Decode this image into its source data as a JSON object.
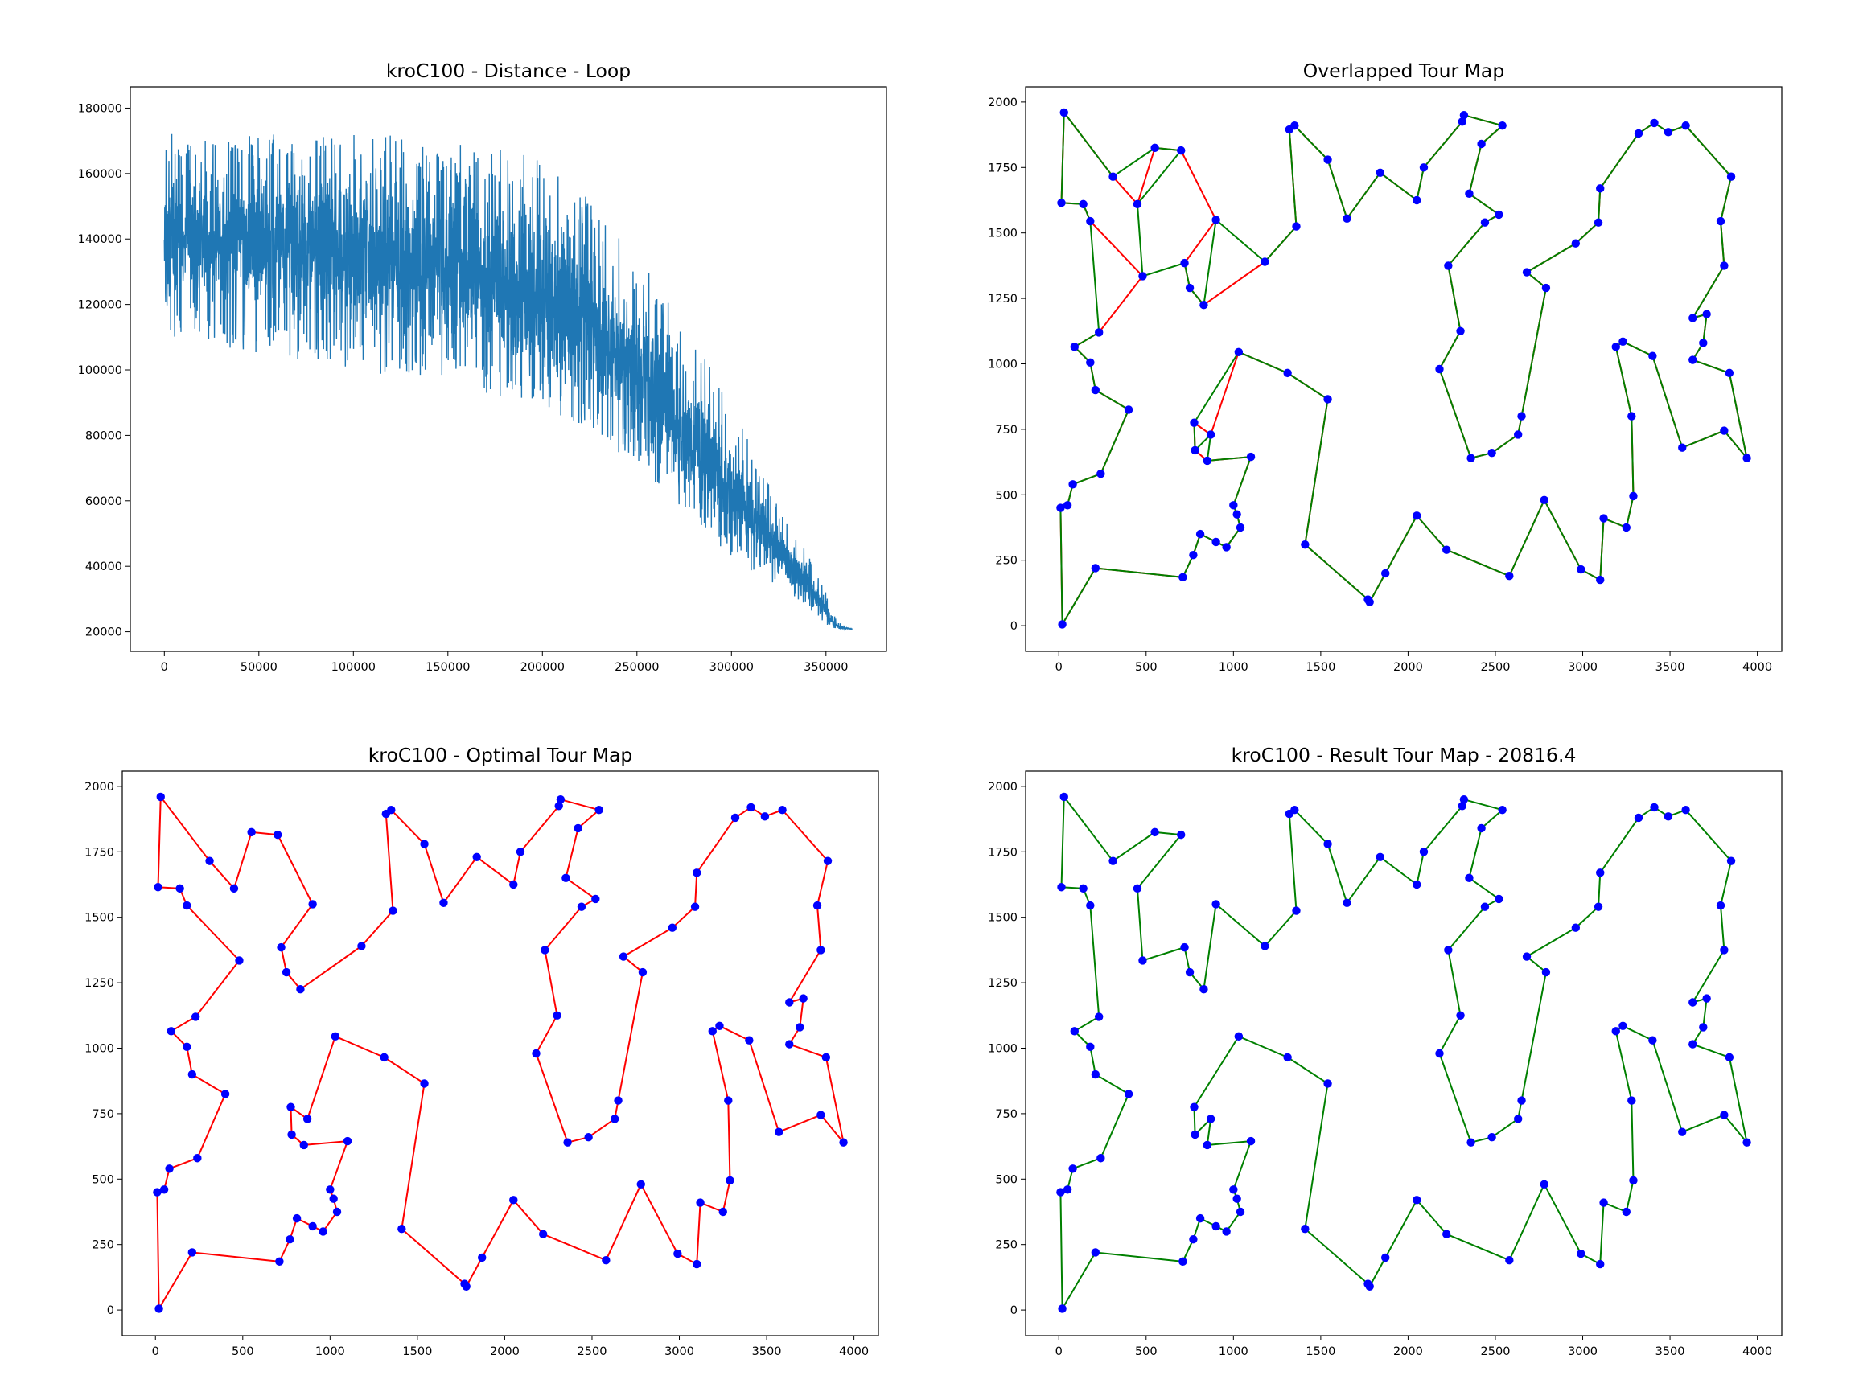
{
  "chart_data": [
    {
      "type": "line",
      "title": "kroC100 - Distance - Loop",
      "xlim": [
        -18000,
        382000
      ],
      "ylim": [
        14000,
        186500
      ],
      "x_ticks": [
        0,
        50000,
        100000,
        150000,
        200000,
        250000,
        300000,
        350000
      ],
      "x_tick_labels": [
        "0",
        "50000",
        "100000",
        "150000",
        "200000",
        "250000",
        "300000",
        "350000"
      ],
      "y_ticks": [
        20000,
        40000,
        60000,
        80000,
        100000,
        120000,
        140000,
        160000,
        180000
      ],
      "y_tick_labels": [
        "20000",
        "40000",
        "60000",
        "80000",
        "100000",
        "120000",
        "140000",
        "160000",
        "180000"
      ],
      "series": [
        {
          "color": "#1f77b4",
          "x_end": 364000,
          "envelope": {
            "x": [
              0,
              2000,
              20000,
              50000,
              100000,
              150000,
              200000,
              230000,
              250000,
              280000,
              300000,
              320000,
              340000,
              350000,
              356000,
              364000
            ],
            "min": [
              125000,
              110000,
              108000,
              105000,
              100000,
              95000,
              88000,
              80000,
              70000,
              55000,
              42000,
              35000,
              27000,
              22000,
              20816,
              20816
            ],
            "max": [
              172000,
              174000,
              170000,
              172000,
              173000,
              170000,
              165000,
              150000,
              135000,
              110000,
              90000,
              65000,
              45000,
              32000,
              23000,
              20816
            ],
            "center": [
              138000,
              140000,
              140000,
              139000,
              137000,
              132000,
              122000,
              112000,
              100000,
              80000,
              63000,
              48000,
              35000,
              26000,
              21500,
              20816
            ]
          }
        }
      ]
    },
    {
      "type": "scatter",
      "title": "Overlapped Tour Map",
      "xlim": [
        -190,
        4140
      ],
      "ylim": [
        -98,
        2058
      ],
      "x_ticks": [
        0,
        500,
        1000,
        1500,
        2000,
        2500,
        3000,
        3500,
        4000
      ],
      "x_tick_labels": [
        "0",
        "500",
        "1000",
        "1500",
        "2000",
        "2500",
        "3000",
        "3500",
        "4000"
      ],
      "y_ticks": [
        0,
        250,
        500,
        750,
        1000,
        1250,
        1500,
        1750,
        2000
      ],
      "y_tick_labels": [
        "0",
        "250",
        "500",
        "750",
        "1000",
        "1250",
        "1500",
        "1750",
        "2000"
      ],
      "layers": [
        "optimal",
        "result"
      ]
    },
    {
      "type": "scatter",
      "title": "kroC100 - Optimal Tour Map",
      "xlim": [
        -190,
        4140
      ],
      "ylim": [
        -98,
        2058
      ],
      "x_ticks": [
        0,
        500,
        1000,
        1500,
        2000,
        2500,
        3000,
        3500,
        4000
      ],
      "x_tick_labels": [
        "0",
        "500",
        "1000",
        "1500",
        "2000",
        "2500",
        "3000",
        "3500",
        "4000"
      ],
      "y_ticks": [
        0,
        250,
        500,
        750,
        1000,
        1250,
        1500,
        1750,
        2000
      ],
      "y_tick_labels": [
        "0",
        "250",
        "500",
        "750",
        "1000",
        "1250",
        "1500",
        "1750",
        "2000"
      ],
      "layers": [
        "optimal"
      ]
    },
    {
      "type": "scatter",
      "title": "kroC100 - Result Tour Map - 20816.4",
      "xlim": [
        -190,
        4140
      ],
      "ylim": [
        -98,
        2058
      ],
      "x_ticks": [
        0,
        500,
        1000,
        1500,
        2000,
        2500,
        3000,
        3500,
        4000
      ],
      "x_tick_labels": [
        "0",
        "500",
        "1000",
        "1500",
        "2000",
        "2500",
        "3000",
        "3500",
        "4000"
      ],
      "y_ticks": [
        0,
        250,
        500,
        750,
        1000,
        1250,
        1500,
        1750,
        2000
      ],
      "y_tick_labels": [
        "0",
        "250",
        "500",
        "750",
        "1000",
        "1250",
        "1500",
        "1750",
        "2000"
      ],
      "layers": [
        "result"
      ]
    }
  ],
  "tours": {
    "colors": {
      "optimal": "#ff0000",
      "result": "#008000",
      "city": "#0000ff"
    },
    "optimal": [
      [
        20,
        5
      ],
      [
        210,
        220
      ],
      [
        710,
        185
      ],
      [
        770,
        270
      ],
      [
        810,
        350
      ],
      [
        900,
        320
      ],
      [
        960,
        300
      ],
      [
        1040,
        375
      ],
      [
        1020,
        425
      ],
      [
        1000,
        460
      ],
      [
        1100,
        645
      ],
      [
        850,
        630
      ],
      [
        780,
        670
      ],
      [
        775,
        775
      ],
      [
        870,
        730
      ],
      [
        1030,
        1045
      ],
      [
        1310,
        965
      ],
      [
        1540,
        865
      ],
      [
        1410,
        310
      ],
      [
        1770,
        100
      ],
      [
        1780,
        90
      ],
      [
        1870,
        200
      ],
      [
        2050,
        420
      ],
      [
        2220,
        290
      ],
      [
        2580,
        190
      ],
      [
        2780,
        480
      ],
      [
        2990,
        215
      ],
      [
        3100,
        175
      ],
      [
        3120,
        410
      ],
      [
        3250,
        375
      ],
      [
        3290,
        495
      ],
      [
        3280,
        800
      ],
      [
        3190,
        1065
      ],
      [
        3230,
        1085
      ],
      [
        3400,
        1030
      ],
      [
        3570,
        680
      ],
      [
        3810,
        745
      ],
      [
        3940,
        640
      ],
      [
        3840,
        965
      ],
      [
        3630,
        1015
      ],
      [
        3690,
        1080
      ],
      [
        3710,
        1190
      ],
      [
        3630,
        1175
      ],
      [
        3810,
        1375
      ],
      [
        3790,
        1545
      ],
      [
        3850,
        1715
      ],
      [
        3590,
        1910
      ],
      [
        3490,
        1885
      ],
      [
        3410,
        1920
      ],
      [
        3320,
        1880
      ],
      [
        3100,
        1670
      ],
      [
        3090,
        1540
      ],
      [
        2960,
        1460
      ],
      [
        2680,
        1350
      ],
      [
        2790,
        1290
      ],
      [
        2650,
        800
      ],
      [
        2630,
        730
      ],
      [
        2480,
        660
      ],
      [
        2360,
        640
      ],
      [
        2180,
        980
      ],
      [
        2300,
        1125
      ],
      [
        2230,
        1375
      ],
      [
        2440,
        1540
      ],
      [
        2520,
        1570
      ],
      [
        2350,
        1650
      ],
      [
        2420,
        1840
      ],
      [
        2540,
        1910
      ],
      [
        2320,
        1950
      ],
      [
        2310,
        1925
      ],
      [
        2090,
        1750
      ],
      [
        2050,
        1625
      ],
      [
        1840,
        1730
      ],
      [
        1650,
        1555
      ],
      [
        1540,
        1780
      ],
      [
        1350,
        1910
      ],
      [
        1320,
        1895
      ],
      [
        1360,
        1525
      ],
      [
        1180,
        1390
      ],
      [
        830,
        1225
      ],
      [
        750,
        1290
      ],
      [
        720,
        1385
      ],
      [
        900,
        1550
      ],
      [
        700,
        1815
      ],
      [
        550,
        1825
      ],
      [
        450,
        1610
      ],
      [
        310,
        1715
      ],
      [
        30,
        1960
      ],
      [
        15,
        1615
      ],
      [
        140,
        1610
      ],
      [
        180,
        1545
      ],
      [
        480,
        1335
      ],
      [
        230,
        1120
      ],
      [
        90,
        1065
      ],
      [
        180,
        1005
      ],
      [
        210,
        900
      ],
      [
        400,
        825
      ],
      [
        240,
        580
      ],
      [
        80,
        540
      ],
      [
        50,
        460
      ],
      [
        10,
        450
      ]
    ],
    "result": [
      [
        20,
        5
      ],
      [
        210,
        220
      ],
      [
        710,
        185
      ],
      [
        770,
        270
      ],
      [
        810,
        350
      ],
      [
        900,
        320
      ],
      [
        960,
        300
      ],
      [
        1040,
        375
      ],
      [
        1020,
        425
      ],
      [
        1000,
        460
      ],
      [
        1100,
        645
      ],
      [
        850,
        630
      ],
      [
        870,
        730
      ],
      [
        780,
        670
      ],
      [
        775,
        775
      ],
      [
        1030,
        1045
      ],
      [
        1310,
        965
      ],
      [
        1540,
        865
      ],
      [
        1410,
        310
      ],
      [
        1770,
        100
      ],
      [
        1780,
        90
      ],
      [
        1870,
        200
      ],
      [
        2050,
        420
      ],
      [
        2220,
        290
      ],
      [
        2580,
        190
      ],
      [
        2780,
        480
      ],
      [
        2990,
        215
      ],
      [
        3100,
        175
      ],
      [
        3120,
        410
      ],
      [
        3250,
        375
      ],
      [
        3290,
        495
      ],
      [
        3280,
        800
      ],
      [
        3190,
        1065
      ],
      [
        3230,
        1085
      ],
      [
        3400,
        1030
      ],
      [
        3570,
        680
      ],
      [
        3810,
        745
      ],
      [
        3940,
        640
      ],
      [
        3840,
        965
      ],
      [
        3630,
        1015
      ],
      [
        3690,
        1080
      ],
      [
        3710,
        1190
      ],
      [
        3630,
        1175
      ],
      [
        3810,
        1375
      ],
      [
        3790,
        1545
      ],
      [
        3850,
        1715
      ],
      [
        3590,
        1910
      ],
      [
        3490,
        1885
      ],
      [
        3410,
        1920
      ],
      [
        3320,
        1880
      ],
      [
        3100,
        1670
      ],
      [
        3090,
        1540
      ],
      [
        2960,
        1460
      ],
      [
        2680,
        1350
      ],
      [
        2790,
        1290
      ],
      [
        2650,
        800
      ],
      [
        2630,
        730
      ],
      [
        2480,
        660
      ],
      [
        2360,
        640
      ],
      [
        2180,
        980
      ],
      [
        2300,
        1125
      ],
      [
        2230,
        1375
      ],
      [
        2440,
        1540
      ],
      [
        2520,
        1570
      ],
      [
        2350,
        1650
      ],
      [
        2420,
        1840
      ],
      [
        2540,
        1910
      ],
      [
        2320,
        1950
      ],
      [
        2310,
        1925
      ],
      [
        2090,
        1750
      ],
      [
        2050,
        1625
      ],
      [
        1840,
        1730
      ],
      [
        1650,
        1555
      ],
      [
        1540,
        1780
      ],
      [
        1350,
        1910
      ],
      [
        1320,
        1895
      ],
      [
        1360,
        1525
      ],
      [
        1180,
        1390
      ],
      [
        900,
        1550
      ],
      [
        830,
        1225
      ],
      [
        750,
        1290
      ],
      [
        720,
        1385
      ],
      [
        480,
        1335
      ],
      [
        450,
        1610
      ],
      [
        700,
        1815
      ],
      [
        550,
        1825
      ],
      [
        310,
        1715
      ],
      [
        30,
        1960
      ],
      [
        15,
        1615
      ],
      [
        140,
        1610
      ],
      [
        180,
        1545
      ],
      [
        230,
        1120
      ],
      [
        90,
        1065
      ],
      [
        180,
        1005
      ],
      [
        210,
        900
      ],
      [
        400,
        825
      ],
      [
        240,
        580
      ],
      [
        80,
        540
      ],
      [
        50,
        460
      ],
      [
        10,
        450
      ]
    ]
  }
}
